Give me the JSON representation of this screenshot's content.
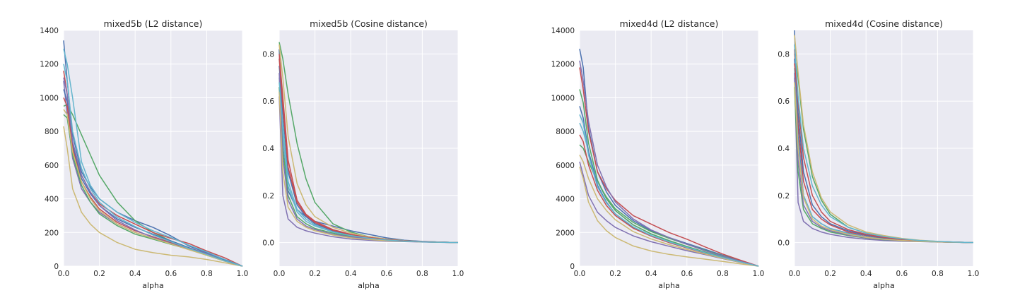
{
  "figure": {
    "panels": [
      {
        "title": "mixed5b (L2 distance)",
        "xlabel": "alpha",
        "xlim": [
          0,
          1
        ],
        "ylim": [
          0,
          1400
        ],
        "xticks": [
          "0.0",
          "0.2",
          "0.4",
          "0.6",
          "0.8",
          "1.0"
        ],
        "yticks": [
          "0",
          "200",
          "400",
          "600",
          "800",
          "1000",
          "1200",
          "1400"
        ]
      },
      {
        "title": "mixed5b (Cosine distance)",
        "xlabel": "alpha",
        "xlim": [
          0,
          1
        ],
        "ylim": [
          -0.1,
          0.9
        ],
        "xticks": [
          "0.0",
          "0.2",
          "0.4",
          "0.6",
          "0.8",
          "1.0"
        ],
        "yticks": [
          "0.0",
          "0.2",
          "0.4",
          "0.6",
          "0.8"
        ]
      },
      {
        "title": "mixed4d (L2 distance)",
        "xlabel": "alpha",
        "xlim": [
          0,
          1
        ],
        "ylim": [
          0,
          14000
        ],
        "xticks": [
          "0.0",
          "0.2",
          "0.4",
          "0.6",
          "0.8",
          "1.0"
        ],
        "yticks": [
          "0",
          "2000",
          "4000",
          "6000",
          "8000",
          "10000",
          "12000",
          "14000"
        ]
      },
      {
        "title": "mixed4d (Cosine distance)",
        "xlabel": "alpha",
        "xlim": [
          0,
          1
        ],
        "ylim": [
          -0.1,
          0.9
        ],
        "xticks": [
          "0.0",
          "0.2",
          "0.4",
          "0.6",
          "0.8",
          "1.0"
        ],
        "yticks": [
          "0.0",
          "0.2",
          "0.4",
          "0.6",
          "0.8"
        ]
      }
    ]
  },
  "colors": {
    "background": "#EAEAF2",
    "grid": "#FFFFFF",
    "palette": [
      "#4C72B0",
      "#55A868",
      "#C44E52",
      "#8172B2",
      "#CCB974",
      "#64B5CD"
    ]
  },
  "chart_data": [
    {
      "type": "line",
      "title": "mixed5b (L2 distance)",
      "xlabel": "alpha",
      "ylabel": "",
      "xlim": [
        0,
        1
      ],
      "ylim": [
        0,
        1400
      ],
      "grid": true,
      "x": [
        0,
        0.02,
        0.05,
        0.1,
        0.15,
        0.2,
        0.3,
        0.4,
        0.5,
        0.6,
        0.7,
        0.8,
        0.9,
        1.0
      ],
      "series": [
        {
          "values": [
            1340,
            1100,
            780,
            560,
            470,
            400,
            320,
            270,
            230,
            180,
            120,
            80,
            40,
            0
          ]
        },
        {
          "values": [
            950,
            960,
            900,
            780,
            660,
            540,
            380,
            270,
            200,
            150,
            110,
            70,
            30,
            0
          ]
        },
        {
          "values": [
            1160,
            1020,
            720,
            540,
            440,
            370,
            300,
            250,
            200,
            165,
            135,
            90,
            50,
            0
          ]
        },
        {
          "values": [
            1100,
            900,
            640,
            460,
            380,
            320,
            250,
            200,
            165,
            140,
            110,
            75,
            35,
            0
          ]
        },
        {
          "values": [
            830,
            700,
            460,
            320,
            250,
            200,
            140,
            100,
            80,
            65,
            55,
            40,
            20,
            0
          ]
        },
        {
          "values": [
            1290,
            1200,
            1000,
            620,
            480,
            400,
            320,
            260,
            210,
            170,
            125,
            85,
            40,
            0
          ]
        },
        {
          "values": [
            1050,
            980,
            720,
            520,
            430,
            360,
            280,
            230,
            190,
            150,
            110,
            70,
            35,
            0
          ]
        },
        {
          "values": [
            900,
            880,
            660,
            480,
            380,
            310,
            240,
            190,
            160,
            130,
            100,
            65,
            30,
            0
          ]
        },
        {
          "values": [
            1000,
            950,
            700,
            500,
            410,
            340,
            260,
            210,
            175,
            140,
            105,
            70,
            30,
            0
          ]
        },
        {
          "values": [
            1120,
            1020,
            740,
            540,
            440,
            360,
            270,
            215,
            170,
            135,
            100,
            68,
            32,
            0
          ]
        },
        {
          "values": [
            930,
            900,
            680,
            500,
            400,
            330,
            250,
            200,
            165,
            132,
            98,
            65,
            30,
            0
          ]
        },
        {
          "values": [
            1200,
            1100,
            800,
            580,
            460,
            380,
            290,
            235,
            185,
            145,
            105,
            70,
            32,
            0
          ]
        }
      ]
    },
    {
      "type": "line",
      "title": "mixed5b (Cosine distance)",
      "xlabel": "alpha",
      "ylabel": "",
      "xlim": [
        0,
        1
      ],
      "ylim": [
        -0.1,
        0.9
      ],
      "grid": true,
      "x": [
        0,
        0.02,
        0.05,
        0.1,
        0.15,
        0.2,
        0.3,
        0.4,
        0.5,
        0.6,
        0.7,
        0.8,
        0.9,
        1.0
      ],
      "series": [
        {
          "values": [
            0.82,
            0.45,
            0.22,
            0.14,
            0.11,
            0.09,
            0.07,
            0.05,
            0.035,
            0.02,
            0.01,
            0.005,
            0.002,
            0
          ]
        },
        {
          "values": [
            0.85,
            0.78,
            0.63,
            0.42,
            0.27,
            0.17,
            0.08,
            0.045,
            0.025,
            0.015,
            0.008,
            0.004,
            0.002,
            0
          ]
        },
        {
          "values": [
            0.8,
            0.62,
            0.35,
            0.18,
            0.12,
            0.09,
            0.055,
            0.035,
            0.02,
            0.012,
            0.007,
            0.004,
            0.002,
            0
          ]
        },
        {
          "values": [
            0.62,
            0.2,
            0.1,
            0.065,
            0.05,
            0.04,
            0.025,
            0.015,
            0.01,
            0.006,
            0.004,
            0.002,
            0.001,
            0
          ]
        },
        {
          "values": [
            0.84,
            0.7,
            0.45,
            0.25,
            0.16,
            0.11,
            0.065,
            0.04,
            0.025,
            0.015,
            0.008,
            0.004,
            0.002,
            0
          ]
        },
        {
          "values": [
            0.7,
            0.45,
            0.24,
            0.13,
            0.09,
            0.07,
            0.045,
            0.03,
            0.02,
            0.012,
            0.007,
            0.004,
            0.002,
            0
          ]
        },
        {
          "values": [
            0.75,
            0.55,
            0.3,
            0.16,
            0.11,
            0.08,
            0.05,
            0.032,
            0.02,
            0.012,
            0.007,
            0.004,
            0.002,
            0
          ]
        },
        {
          "values": [
            0.66,
            0.4,
            0.2,
            0.11,
            0.08,
            0.06,
            0.04,
            0.026,
            0.017,
            0.01,
            0.006,
            0.003,
            0.0015,
            0
          ]
        },
        {
          "values": [
            0.78,
            0.58,
            0.32,
            0.17,
            0.115,
            0.085,
            0.052,
            0.034,
            0.022,
            0.013,
            0.007,
            0.004,
            0.002,
            0
          ]
        },
        {
          "values": [
            0.72,
            0.36,
            0.18,
            0.1,
            0.07,
            0.055,
            0.035,
            0.024,
            0.016,
            0.01,
            0.006,
            0.003,
            0.0015,
            0
          ]
        },
        {
          "values": [
            0.64,
            0.3,
            0.15,
            0.09,
            0.065,
            0.05,
            0.032,
            0.02,
            0.013,
            0.008,
            0.005,
            0.003,
            0.0015,
            0
          ]
        },
        {
          "values": [
            0.68,
            0.5,
            0.26,
            0.14,
            0.1,
            0.075,
            0.045,
            0.03,
            0.019,
            0.011,
            0.006,
            0.003,
            0.0015,
            0
          ]
        }
      ]
    },
    {
      "type": "line",
      "title": "mixed4d (L2 distance)",
      "xlabel": "alpha",
      "ylabel": "",
      "xlim": [
        0,
        1
      ],
      "ylim": [
        0,
        14000
      ],
      "grid": true,
      "x": [
        0,
        0.02,
        0.05,
        0.1,
        0.15,
        0.2,
        0.3,
        0.4,
        0.5,
        0.6,
        0.7,
        0.8,
        0.9,
        1.0
      ],
      "series": [
        {
          "values": [
            12900,
            11800,
            8200,
            5600,
            4400,
            3600,
            2700,
            2100,
            1700,
            1350,
            1000,
            650,
            330,
            0
          ]
        },
        {
          "values": [
            7200,
            7000,
            6200,
            5000,
            4100,
            3400,
            2600,
            2050,
            1650,
            1300,
            950,
            620,
            300,
            0
          ]
        },
        {
          "values": [
            11800,
            10500,
            8000,
            5600,
            4600,
            3900,
            3000,
            2500,
            2000,
            1600,
            1150,
            720,
            350,
            0
          ]
        },
        {
          "values": [
            6200,
            5400,
            4200,
            3200,
            2700,
            2300,
            1800,
            1450,
            1180,
            920,
            690,
            450,
            220,
            0
          ]
        },
        {
          "values": [
            5900,
            5200,
            3800,
            2700,
            2100,
            1700,
            1200,
            900,
            700,
            550,
            420,
            280,
            140,
            0
          ]
        },
        {
          "values": [
            8500,
            8000,
            6800,
            5000,
            4000,
            3300,
            2450,
            1900,
            1500,
            1150,
            830,
            540,
            260,
            0
          ]
        },
        {
          "values": [
            9500,
            8800,
            6800,
            4800,
            3800,
            3100,
            2300,
            1800,
            1420,
            1100,
            800,
            520,
            250,
            0
          ]
        },
        {
          "values": [
            10500,
            9700,
            7300,
            5100,
            4000,
            3300,
            2450,
            1920,
            1520,
            1170,
            840,
            540,
            260,
            0
          ]
        },
        {
          "values": [
            7800,
            7400,
            6000,
            4500,
            3600,
            3000,
            2250,
            1780,
            1400,
            1080,
            780,
            500,
            240,
            0
          ]
        },
        {
          "values": [
            12200,
            11000,
            8600,
            6000,
            4700,
            3800,
            2800,
            2150,
            1700,
            1300,
            920,
            600,
            290,
            0
          ]
        },
        {
          "values": [
            6600,
            6200,
            5200,
            4000,
            3300,
            2750,
            2050,
            1620,
            1280,
            990,
            720,
            470,
            230,
            0
          ]
        },
        {
          "values": [
            9000,
            8500,
            6600,
            4700,
            3750,
            3100,
            2330,
            1820,
            1440,
            1110,
            800,
            520,
            250,
            0
          ]
        }
      ]
    },
    {
      "type": "line",
      "title": "mixed4d (Cosine distance)",
      "xlabel": "alpha",
      "ylabel": "",
      "xlim": [
        0,
        1
      ],
      "ylim": [
        -0.1,
        0.9
      ],
      "grid": true,
      "x": [
        0,
        0.02,
        0.05,
        0.1,
        0.15,
        0.2,
        0.3,
        0.4,
        0.5,
        0.6,
        0.7,
        0.8,
        0.9,
        1.0
      ],
      "series": [
        {
          "values": [
            0.9,
            0.45,
            0.2,
            0.11,
            0.08,
            0.06,
            0.04,
            0.025,
            0.016,
            0.01,
            0.006,
            0.003,
            0.0015,
            0
          ]
        },
        {
          "values": [
            0.8,
            0.7,
            0.48,
            0.28,
            0.18,
            0.12,
            0.065,
            0.04,
            0.025,
            0.015,
            0.008,
            0.004,
            0.002,
            0
          ]
        },
        {
          "values": [
            0.82,
            0.5,
            0.26,
            0.14,
            0.1,
            0.075,
            0.045,
            0.03,
            0.019,
            0.011,
            0.006,
            0.003,
            0.0015,
            0
          ]
        },
        {
          "values": [
            0.7,
            0.17,
            0.09,
            0.06,
            0.045,
            0.035,
            0.022,
            0.014,
            0.009,
            0.006,
            0.004,
            0.002,
            0.001,
            0
          ]
        },
        {
          "values": [
            0.88,
            0.72,
            0.5,
            0.3,
            0.19,
            0.13,
            0.075,
            0.045,
            0.03,
            0.018,
            0.01,
            0.005,
            0.002,
            0
          ]
        },
        {
          "values": [
            0.74,
            0.42,
            0.2,
            0.11,
            0.08,
            0.06,
            0.038,
            0.024,
            0.015,
            0.009,
            0.005,
            0.003,
            0.0015,
            0
          ]
        },
        {
          "values": [
            0.78,
            0.55,
            0.3,
            0.16,
            0.11,
            0.08,
            0.05,
            0.032,
            0.02,
            0.012,
            0.007,
            0.004,
            0.002,
            0
          ]
        },
        {
          "values": [
            0.66,
            0.3,
            0.14,
            0.08,
            0.06,
            0.045,
            0.03,
            0.019,
            0.012,
            0.008,
            0.005,
            0.003,
            0.0015,
            0
          ]
        },
        {
          "values": [
            0.76,
            0.6,
            0.36,
            0.2,
            0.13,
            0.09,
            0.055,
            0.035,
            0.022,
            0.013,
            0.007,
            0.004,
            0.002,
            0
          ]
        },
        {
          "values": [
            0.72,
            0.35,
            0.16,
            0.09,
            0.065,
            0.05,
            0.032,
            0.02,
            0.013,
            0.008,
            0.005,
            0.003,
            0.0015,
            0
          ]
        },
        {
          "values": [
            0.68,
            0.4,
            0.19,
            0.1,
            0.07,
            0.055,
            0.035,
            0.022,
            0.014,
            0.009,
            0.005,
            0.003,
            0.0015,
            0
          ]
        },
        {
          "values": [
            0.84,
            0.62,
            0.4,
            0.24,
            0.16,
            0.11,
            0.065,
            0.04,
            0.026,
            0.016,
            0.009,
            0.005,
            0.002,
            0
          ]
        }
      ]
    }
  ]
}
